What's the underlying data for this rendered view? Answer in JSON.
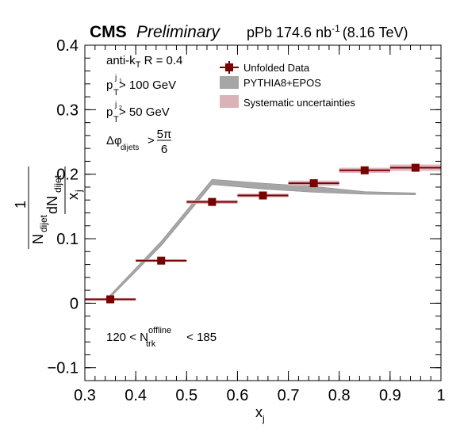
{
  "header": {
    "experiment": "CMS",
    "status": "Preliminary",
    "lumi_prefix": "pPb 174.6 nb",
    "lumi_exp": "-1",
    "energy": "(8.16 TeV)"
  },
  "cuts": {
    "algo_prefix": "anti-k",
    "algo_sub": "T",
    "algo_suffix": " R = 0.4",
    "pt1_base": "p",
    "pt1_sup": "j",
    "pt1_supsub": "1",
    "pt1_sub": "T",
    "pt1_value": " > 100 GeV",
    "pt2_base": "p",
    "pt2_sup": "j",
    "pt2_supsub": "2",
    "pt2_sub": "T",
    "pt2_value": " > 50 GeV",
    "dphi_base": "Δφ",
    "dphi_sub": "dijets",
    "dphi_op": ">",
    "dphi_num": "5π",
    "dphi_den": "6",
    "mult_prefix": "120 < N",
    "mult_sup": "offline",
    "mult_sub": "trk",
    "mult_suffix": " < 185"
  },
  "legend_labels": {
    "data": "Unfolded Data",
    "mc": "PYTHIA8+EPOS",
    "syst": "Systematic uncertainties"
  },
  "axis_labels": {
    "x_base": "x",
    "x_sub": "j",
    "y_frac_num": "1",
    "y_frac_den_base": "N",
    "y_frac_den_sub": "dijet",
    "y_deriv_num_base": "dN",
    "y_deriv_num_sub": "dijet",
    "y_deriv_den_base": "x",
    "y_deriv_den_sub": "j"
  },
  "colors": {
    "data": "#7a0000",
    "mc_band": "#a6a6a6",
    "syst_band": "#d9b3b8"
  },
  "chart_data": {
    "type": "line",
    "xlim": [
      0.3,
      1.0
    ],
    "ylim": [
      -0.12,
      0.4
    ],
    "xticks": [
      "0.3",
      "0.4",
      "0.5",
      "0.6",
      "0.7",
      "0.8",
      "0.9",
      "1"
    ],
    "yticks": [
      "−0.1",
      "0",
      "0.1",
      "0.2",
      "0.3",
      "0.4"
    ],
    "grid": false,
    "legend_position": "top-right",
    "series": [
      {
        "name": "Unfolded Data",
        "style": "points",
        "x": [
          0.35,
          0.45,
          0.55,
          0.65,
          0.75,
          0.85,
          0.95
        ],
        "x_halfwidth": [
          0.05,
          0.05,
          0.05,
          0.05,
          0.05,
          0.05,
          0.05
        ],
        "y": [
          0.006,
          0.066,
          0.157,
          0.167,
          0.186,
          0.206,
          0.21
        ],
        "syst": [
          0.002,
          0.002,
          0.003,
          0.003,
          0.004,
          0.004,
          0.005
        ]
      },
      {
        "name": "PYTHIA8+EPOS",
        "style": "band",
        "x": [
          0.35,
          0.45,
          0.55,
          0.65,
          0.75,
          0.85,
          0.95
        ],
        "y_low": [
          0.009,
          0.089,
          0.184,
          0.177,
          0.172,
          0.169,
          0.168
        ],
        "y_high": [
          0.013,
          0.096,
          0.192,
          0.186,
          0.181,
          0.173,
          0.171
        ]
      }
    ]
  }
}
